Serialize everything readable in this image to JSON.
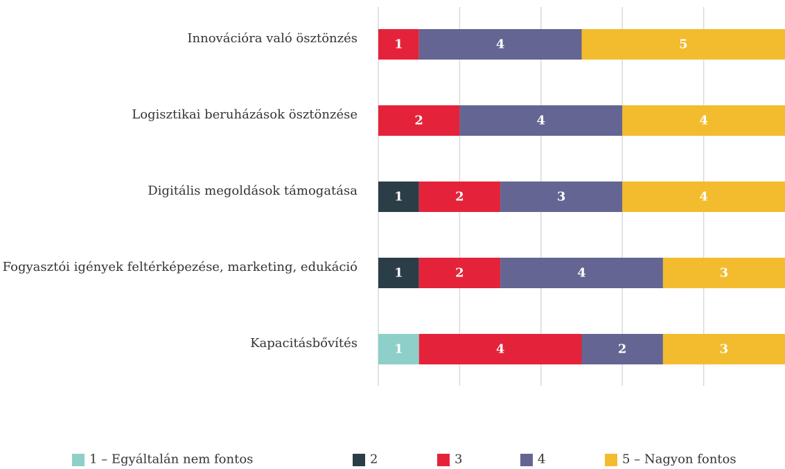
{
  "chart_data": {
    "type": "stacked-bar-horizontal",
    "categories": [
      "Innovációra való ösztönzés",
      "Logisztikai beruházások ösztönzése",
      "Digitális megoldások támogatása",
      "Fogyasztói igények feltérképezése, marketing, edukáció",
      "Kapacitásbővítés"
    ],
    "series": [
      {
        "name": "1 – Egyáltalán nem fontos",
        "color": "#8ecfc9",
        "values": [
          null,
          null,
          null,
          null,
          1
        ]
      },
      {
        "name": "2",
        "color": "#2b3d47",
        "values": [
          null,
          null,
          1,
          1,
          null
        ]
      },
      {
        "name": "3",
        "color": "#e4233a",
        "values": [
          1,
          2,
          2,
          2,
          4
        ]
      },
      {
        "name": "4",
        "color": "#646592",
        "values": [
          4,
          4,
          3,
          4,
          2
        ]
      },
      {
        "name": "5 – Nagyon fontos",
        "color": "#f2bc2e",
        "values": [
          5,
          4,
          4,
          3,
          3
        ]
      }
    ],
    "xlim": [
      0,
      10
    ],
    "xticks": [
      0,
      2,
      4,
      6,
      8
    ],
    "grid": true,
    "legend": "bottom"
  }
}
